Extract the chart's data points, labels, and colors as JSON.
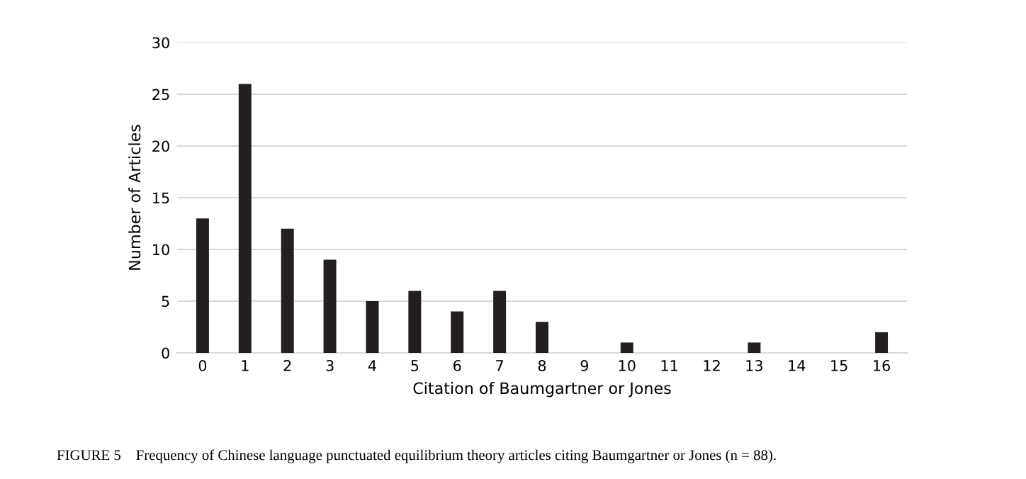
{
  "chart_data": {
    "type": "bar",
    "categories": [
      "0",
      "1",
      "2",
      "3",
      "4",
      "5",
      "6",
      "7",
      "8",
      "9",
      "10",
      "11",
      "12",
      "13",
      "14",
      "15",
      "16"
    ],
    "values": [
      13,
      26,
      12,
      9,
      5,
      6,
      4,
      6,
      3,
      0,
      1,
      0,
      0,
      1,
      0,
      0,
      2
    ],
    "color": "#231f20",
    "xlabel": "Citation of Baumgartner or Jones",
    "ylabel": "Number of Articles",
    "ylim": [
      0,
      30
    ],
    "yticks": [
      0,
      5,
      10,
      15,
      20,
      25,
      30
    ],
    "grid": "y",
    "annotations": [
      "FIGURE 5    Frequency of Chinese language punctuated equilibrium theory articles citing Baumgartner or Jones (n = 88)."
    ]
  }
}
